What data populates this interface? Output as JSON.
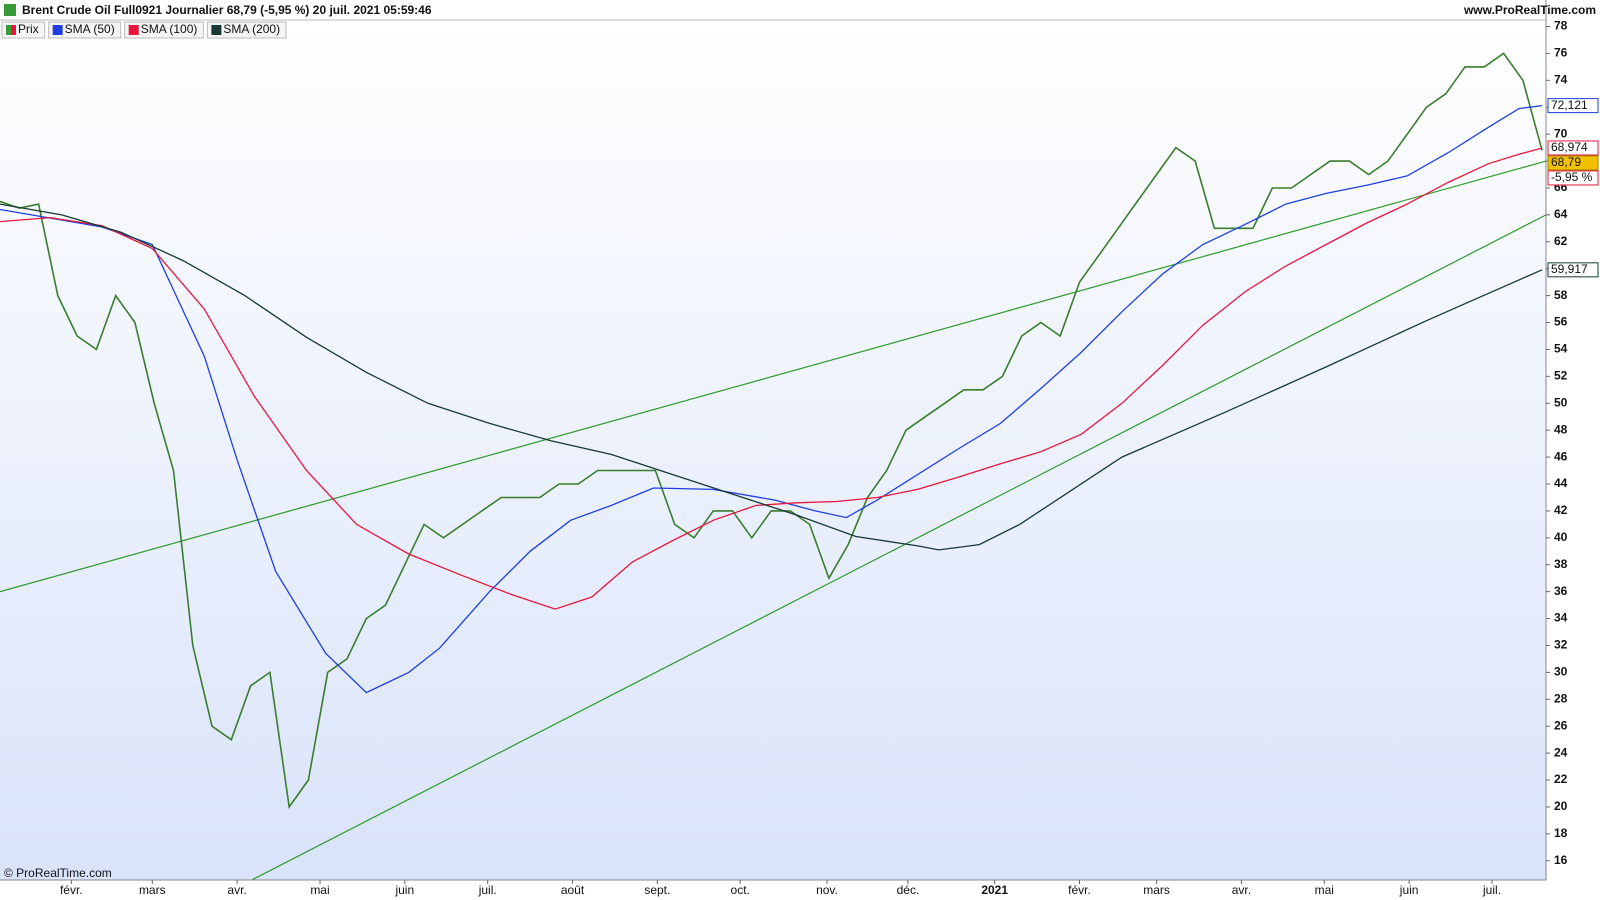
{
  "header": {
    "title": "Brent Crude Oil Full0921 Journalier 68,79 (-5,95 %) 20 juil. 2021 05:59:46",
    "site": "www.ProRealTime.com"
  },
  "footer": "© ProRealTime.com",
  "chart_data": {
    "type": "line",
    "x": [
      0,
      1,
      2,
      3,
      4,
      5,
      6,
      7,
      8,
      9,
      10,
      11,
      12,
      13,
      14,
      15,
      16,
      17,
      18,
      19,
      20,
      21,
      22,
      23,
      24,
      25,
      26,
      27,
      28,
      29,
      30,
      31,
      32,
      33,
      34,
      35,
      36,
      37,
      38,
      39,
      40,
      41,
      42,
      43,
      44,
      45,
      46,
      47,
      48,
      49,
      50,
      51,
      52,
      53,
      54,
      55,
      56,
      57,
      58,
      59,
      60,
      61,
      62,
      63,
      64,
      65,
      66,
      67,
      68,
      69,
      70,
      71,
      72,
      73,
      74,
      75,
      76,
      77,
      78,
      79,
      80
    ],
    "series": [
      {
        "name": "Prix",
        "color": "#3a7d2c",
        "values": [
          65,
          64.5,
          64.8,
          58,
          55,
          54,
          58,
          56,
          50,
          45,
          32,
          26,
          25,
          29,
          30,
          20,
          22,
          30,
          31,
          34,
          35,
          38,
          41,
          40,
          41,
          42,
          43,
          43,
          43,
          44,
          44,
          45,
          45,
          45,
          45,
          41,
          40,
          42,
          42,
          40,
          42,
          42,
          41,
          37,
          39.5,
          43,
          45,
          48,
          49,
          50,
          51,
          51,
          52,
          55,
          56,
          55,
          59,
          61,
          63,
          65,
          67,
          69,
          68,
          63,
          63,
          63,
          66,
          66,
          67,
          68,
          68,
          67,
          68,
          70,
          72,
          73,
          75,
          75,
          76,
          74,
          68.79
        ],
        "last_label": "68,79",
        "change": -5.95,
        "change_label": "-5,95 %"
      },
      {
        "name": "SMA (50)",
        "color": "#1f3fe0",
        "x": [
          0,
          5.3,
          7.9,
          10.6,
          12.3,
          14.3,
          16.9,
          19,
          21.2,
          22.8,
          25.4,
          27.5,
          29.6,
          31.7,
          33.9,
          37,
          40.2,
          42.3,
          43.9,
          45.5,
          47.6,
          49.7,
          51.9,
          54,
          56.1,
          58.2,
          60.3,
          62.4,
          64.6,
          66.7,
          68.8,
          70.9,
          73,
          75.1,
          77.2,
          78.8,
          80
        ],
        "values": [
          64.4,
          63.1,
          61.8,
          53.5,
          45.8,
          37.5,
          31.4,
          28.5,
          30,
          31.8,
          36,
          39,
          41.3,
          42.4,
          43.7,
          43.6,
          42.8,
          42,
          41.5,
          42.8,
          44.7,
          46.6,
          48.5,
          51.1,
          53.8,
          56.8,
          59.6,
          61.8,
          63.3,
          64.8,
          65.6,
          66.2,
          66.9,
          68.6,
          70.5,
          71.9,
          72.121
        ],
        "last_label": "72,121"
      },
      {
        "name": "SMA (100)",
        "color": "#e8163c",
        "x": [
          0,
          2.6,
          5.3,
          7.9,
          10.6,
          13.2,
          15.9,
          18.5,
          21.2,
          23.8,
          26.5,
          28.8,
          30.7,
          32.8,
          34.9,
          37,
          39.2,
          41.3,
          43.4,
          45.5,
          47.6,
          49.7,
          51.9,
          54,
          56.1,
          58.2,
          60.3,
          62.4,
          64.6,
          66.7,
          68.8,
          70.9,
          73,
          75.1,
          77.2,
          78.8,
          80
        ],
        "values": [
          63.5,
          63.8,
          63.2,
          61.5,
          57,
          50.5,
          45,
          41,
          38.8,
          37.3,
          35.8,
          34.7,
          35.6,
          38.2,
          39.8,
          41.3,
          42.4,
          42.6,
          42.7,
          43,
          43.6,
          44.5,
          45.5,
          46.4,
          47.7,
          50,
          52.8,
          55.8,
          58.3,
          60.2,
          61.8,
          63.4,
          64.8,
          66.4,
          67.8,
          68.5,
          68.974
        ],
        "last_label": "68,974"
      },
      {
        "name": "SMA (200)",
        "color": "#163a33",
        "x": [
          0,
          3.2,
          6.3,
          9.5,
          12.7,
          15.9,
          19,
          22.2,
          25.4,
          28.6,
          31.7,
          34.9,
          38.1,
          41.3,
          44.4,
          47.6,
          48.7,
          50.8,
          52.9,
          58.2,
          63.5,
          68.8,
          74.1,
          80
        ],
        "values": [
          64.8,
          64,
          62.7,
          60.6,
          58,
          54.9,
          52.3,
          50,
          48.5,
          47.2,
          46.2,
          44.7,
          43.2,
          41.7,
          40.1,
          39.4,
          39.1,
          39.5,
          41,
          46,
          49.3,
          52.7,
          56.2,
          59.917
        ],
        "last_label": "59,917"
      }
    ],
    "trend_lines": [
      {
        "color": "#2e9a2e",
        "x": [
          0,
          80.2
        ],
        "values": [
          36,
          68
        ]
      },
      {
        "color": "#2e9a2e",
        "x": [
          13.1,
          80.2
        ],
        "values": [
          14.6,
          64
        ]
      }
    ],
    "xlim": [
      0,
      80.2
    ],
    "xticks": [
      {
        "value": 3.7,
        "label": "févr."
      },
      {
        "value": 7.9,
        "label": "mars"
      },
      {
        "value": 12.3,
        "label": "avr."
      },
      {
        "value": 16.6,
        "label": "mai"
      },
      {
        "value": 21,
        "label": "juin"
      },
      {
        "value": 25.3,
        "label": "juil."
      },
      {
        "value": 29.7,
        "label": "août"
      },
      {
        "value": 34.1,
        "label": "sept."
      },
      {
        "value": 38.4,
        "label": "oct."
      },
      {
        "value": 42.9,
        "label": "nov."
      },
      {
        "value": 47.1,
        "label": "déc."
      },
      {
        "value": 51.6,
        "label": "2021"
      },
      {
        "value": 56,
        "label": "févr."
      },
      {
        "value": 60,
        "label": "mars"
      },
      {
        "value": 64.4,
        "label": "avr."
      },
      {
        "value": 68.7,
        "label": "mai"
      },
      {
        "value": 73.1,
        "label": "juin"
      },
      {
        "value": 77.4,
        "label": "juil."
      }
    ],
    "ylim": [
      14.57,
      79.97
    ],
    "yticks": [
      16,
      18,
      20,
      22,
      24,
      26,
      28,
      30,
      32,
      34,
      36,
      38,
      40,
      42,
      44,
      46,
      48,
      50,
      52,
      54,
      56,
      58,
      60,
      62,
      64,
      66,
      68,
      70,
      72,
      74,
      76,
      78
    ]
  }
}
